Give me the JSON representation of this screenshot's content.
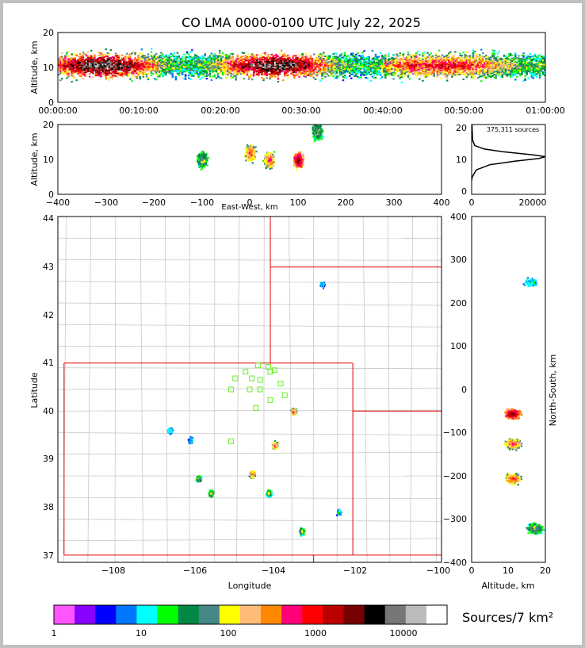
{
  "title": "CO LMA 0000-0100 UTC July 22, 2025",
  "top_panel": {
    "ylabel": "Altitude, km",
    "y_ticks": [
      "0",
      "10",
      "20"
    ],
    "x_ticks": [
      "00:00:00",
      "00:10:00",
      "00:20:00",
      "00:30:00",
      "00:40:00",
      "00:50:00",
      "01:00:00"
    ]
  },
  "ew_panel": {
    "ylabel": "Altitude, km",
    "xlabel": "East-West, km",
    "y_ticks": [
      "0",
      "10",
      "20"
    ],
    "x_ticks": [
      "−400",
      "−300",
      "−200",
      "−100",
      "0",
      "100",
      "200",
      "300",
      "400"
    ]
  },
  "hist_panel": {
    "annotation": "375,311 sources",
    "y_ticks": [
      "0",
      "10",
      "20"
    ],
    "x_ticks": [
      "0",
      "20000"
    ]
  },
  "map_panel": {
    "xlabel": "Longitude",
    "ylabel": "Latitude",
    "x_ticks": [
      "−108",
      "−106",
      "−104",
      "−102",
      "−100"
    ],
    "y_ticks": [
      "37",
      "38",
      "39",
      "40",
      "41",
      "42",
      "43",
      "44"
    ]
  },
  "ns_panel": {
    "xlabel": "Altitude, km",
    "ylabel": "North-South, km",
    "x_ticks": [
      "0",
      "10",
      "20"
    ],
    "y_ticks": [
      "400",
      "300",
      "200",
      "100",
      "0",
      "−100",
      "−200",
      "−300",
      "−400"
    ]
  },
  "colorbar": {
    "label": "Sources/7 km²",
    "tick_labels": [
      "1",
      "10",
      "100",
      "1000",
      "10000"
    ],
    "colors": [
      "#ff55ff",
      "#8800ff",
      "#0000ff",
      "#0077ff",
      "#00ffff",
      "#00ff00",
      "#008844",
      "#448888",
      "#ffff00",
      "#ffbb77",
      "#ff8800",
      "#ff0077",
      "#ff0000",
      "#bb0000",
      "#770000",
      "#000000",
      "#777777",
      "#bbbbbb",
      "#ffffff"
    ]
  },
  "chart_data": [
    {
      "type": "heatmap",
      "panel": "altitude-time",
      "title": "CO LMA 0000-0100 UTC July 22, 2025",
      "ylabel": "Altitude, km",
      "xlim": [
        "00:00:00",
        "01:00:00"
      ],
      "ylim": [
        0,
        20
      ],
      "band_center_altitude_km": 10.5,
      "peak_altitude_range_km": [
        8,
        14
      ],
      "note_visible": "sources extend from about 3 to 20 km throughout the hour"
    },
    {
      "type": "heatmap",
      "panel": "east-west vs altitude",
      "xlabel": "East-West, km",
      "ylabel": "Altitude, km",
      "xlim": [
        -400,
        400
      ],
      "ylim": [
        0,
        20
      ],
      "clusters": [
        {
          "x_center": -100,
          "alt_center": 10,
          "intensity": "medium"
        },
        {
          "x_center": 0,
          "alt_center": 12,
          "intensity": "high"
        },
        {
          "x_center": 40,
          "alt_center": 10,
          "intensity": "high"
        },
        {
          "x_center": 100,
          "alt_center": 10,
          "intensity": "very high"
        },
        {
          "x_center": 140,
          "alt_center": 18,
          "intensity": "medium"
        }
      ]
    },
    {
      "type": "line",
      "panel": "altitude histogram",
      "annotation": "375,311 sources",
      "xlim": [
        0,
        24000
      ],
      "ylim": [
        0,
        20
      ],
      "x": [
        0,
        200,
        1500,
        6000,
        14000,
        22000,
        24000,
        20000,
        10000,
        4000,
        1000,
        300,
        100
      ],
      "y": [
        4,
        5,
        7,
        8.5,
        9.5,
        10.3,
        10.8,
        11.3,
        12.2,
        13,
        14,
        15.5,
        20
      ]
    },
    {
      "type": "heatmap",
      "panel": "plan view",
      "xlabel": "Longitude",
      "ylabel": "Latitude",
      "xlim": [
        -109.2,
        -99.9
      ],
      "ylim": [
        36.85,
        44.05
      ],
      "clusters": [
        {
          "lon": -103.5,
          "lat": 40.0,
          "intensity": "high"
        },
        {
          "lon": -103.95,
          "lat": 39.3,
          "intensity": "high"
        },
        {
          "lon": -104.5,
          "lat": 38.7,
          "intensity": "high"
        },
        {
          "lon": -104.1,
          "lat": 38.3,
          "intensity": "medium"
        },
        {
          "lon": -105.8,
          "lat": 38.6,
          "intensity": "medium"
        },
        {
          "lon": -105.5,
          "lat": 38.3,
          "intensity": "medium"
        },
        {
          "lon": -103.3,
          "lat": 37.5,
          "intensity": "medium"
        },
        {
          "lon": -106.0,
          "lat": 39.4,
          "intensity": "low"
        },
        {
          "lon": -106.5,
          "lat": 39.6,
          "intensity": "low"
        },
        {
          "lon": -102.8,
          "lat": 42.65,
          "intensity": "low"
        },
        {
          "lon": -102.4,
          "lat": 37.9,
          "intensity": "low"
        }
      ],
      "stations": [
        [
          -104.35,
          40.95
        ],
        [
          -104.1,
          40.92
        ],
        [
          -104.05,
          40.82
        ],
        [
          -103.95,
          40.85
        ],
        [
          -104.65,
          40.82
        ],
        [
          -104.9,
          40.68
        ],
        [
          -104.5,
          40.68
        ],
        [
          -104.3,
          40.65
        ],
        [
          -103.8,
          40.57
        ],
        [
          -105.0,
          40.45
        ],
        [
          -104.55,
          40.45
        ],
        [
          -104.3,
          40.45
        ],
        [
          -103.7,
          40.33
        ],
        [
          -104.05,
          40.23
        ],
        [
          -104.4,
          40.06
        ],
        [
          -105.0,
          39.37
        ]
      ]
    },
    {
      "type": "heatmap",
      "panel": "altitude vs north-south",
      "xlabel": "Altitude, km",
      "ylabel": "North-South, km",
      "xlim": [
        0,
        20
      ],
      "ylim": [
        -400,
        400
      ],
      "clusters": [
        {
          "ns_center": -55,
          "alt_center": 11,
          "intensity": "very high"
        },
        {
          "ns_center": -125,
          "alt_center": 11,
          "intensity": "high"
        },
        {
          "ns_center": -205,
          "alt_center": 11,
          "intensity": "high"
        },
        {
          "ns_center": -320,
          "alt_center": 17,
          "intensity": "medium"
        },
        {
          "ns_center": 250,
          "alt_center": 16,
          "intensity": "low"
        }
      ]
    }
  ]
}
